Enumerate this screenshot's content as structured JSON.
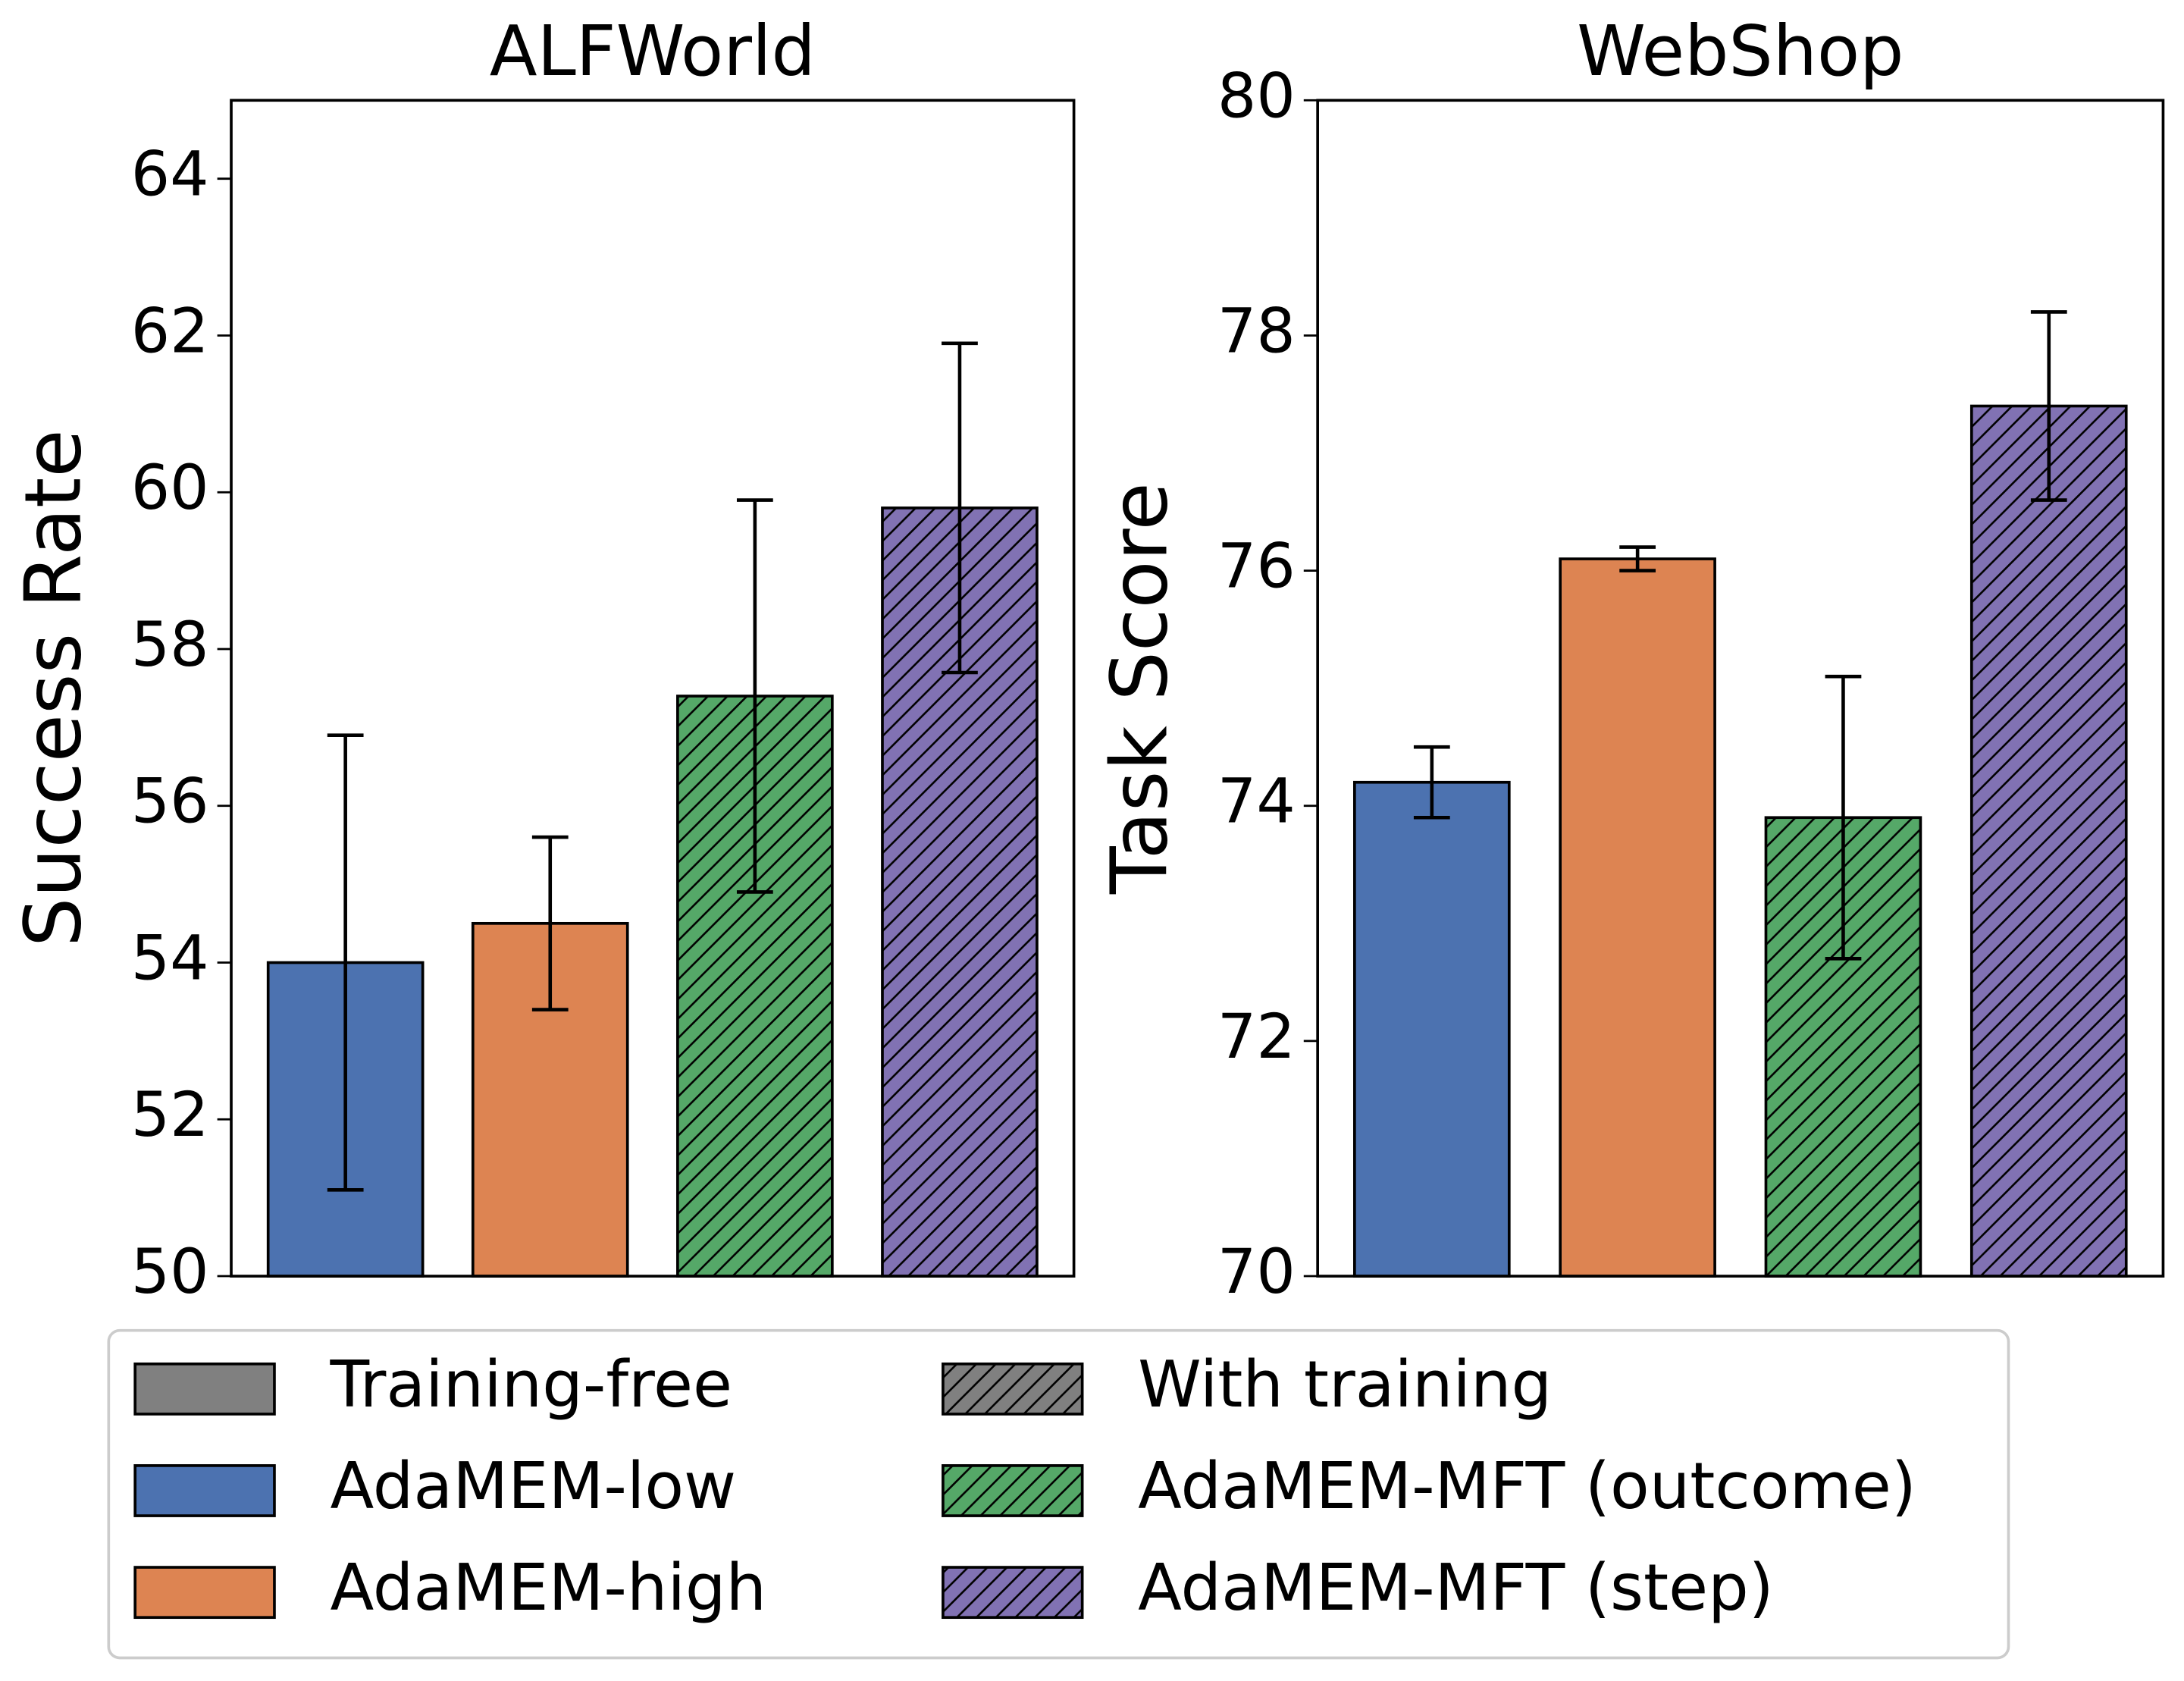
{
  "chart_data": [
    {
      "type": "bar",
      "title": "ALFWorld",
      "ylabel": "Success Rate",
      "ylim": [
        50,
        65
      ],
      "yticks": [
        50,
        52,
        54,
        56,
        58,
        60,
        62,
        64
      ],
      "series": [
        {
          "name": "AdaMEM-low",
          "color": "#4c72b0",
          "hatch": false,
          "values": [
            54.0
          ],
          "errors": [
            2.9
          ]
        },
        {
          "name": "AdaMEM-high",
          "color": "#dd8452",
          "hatch": false,
          "values": [
            54.5
          ],
          "errors": [
            1.1
          ]
        },
        {
          "name": "AdaMEM-MFT (outcome)",
          "color": "#55a868",
          "hatch": true,
          "values": [
            57.4
          ],
          "errors": [
            2.5
          ]
        },
        {
          "name": "AdaMEM-MFT (step)",
          "color": "#8172b3",
          "hatch": true,
          "values": [
            59.8
          ],
          "errors": [
            2.1
          ]
        }
      ]
    },
    {
      "type": "bar",
      "title": "WebShop",
      "ylabel": "Task Score",
      "ylim": [
        70,
        80
      ],
      "yticks": [
        70,
        72,
        74,
        76,
        78,
        80
      ],
      "series": [
        {
          "name": "AdaMEM-low",
          "color": "#4c72b0",
          "hatch": false,
          "values": [
            74.2
          ],
          "errors": [
            0.3
          ]
        },
        {
          "name": "AdaMEM-high",
          "color": "#dd8452",
          "hatch": false,
          "values": [
            76.1
          ],
          "errors": [
            0.1
          ]
        },
        {
          "name": "AdaMEM-MFT (outcome)",
          "color": "#55a868",
          "hatch": true,
          "values": [
            73.9
          ],
          "errors": [
            1.2
          ]
        },
        {
          "name": "AdaMEM-MFT (step)",
          "color": "#8172b3",
          "hatch": true,
          "values": [
            77.4
          ],
          "errors": [
            0.8
          ]
        }
      ]
    }
  ],
  "legend": {
    "items": [
      {
        "name": "Training-free",
        "color": "#808080",
        "hatch": false
      },
      {
        "name": "With training",
        "color": "#808080",
        "hatch": true
      }
    ]
  }
}
